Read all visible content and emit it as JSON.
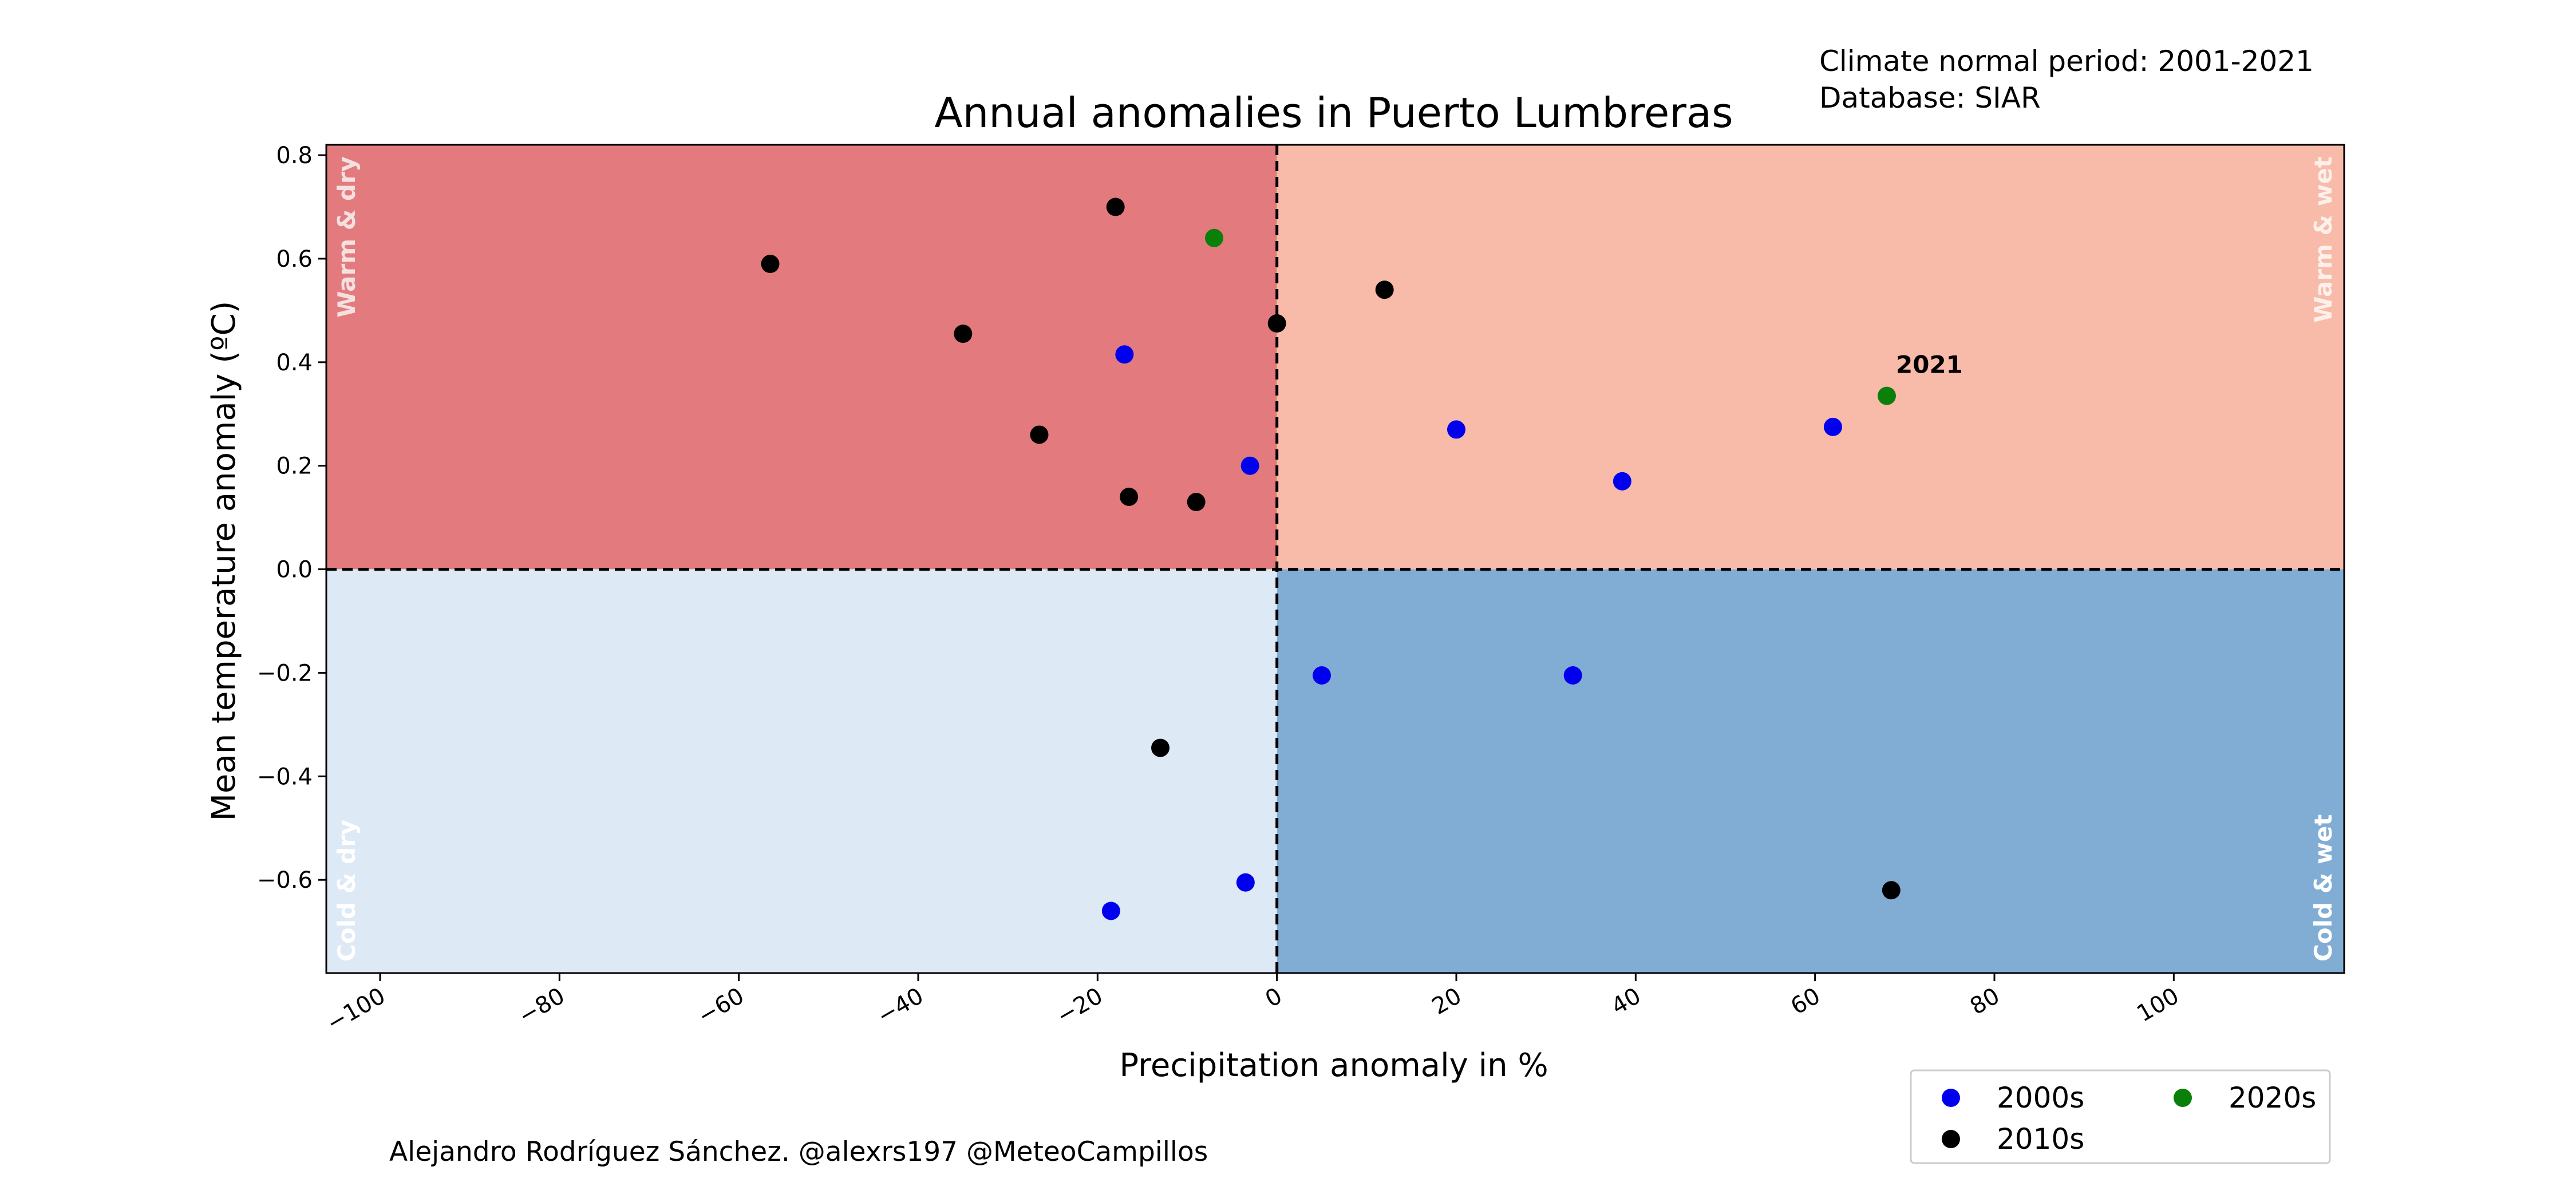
{
  "header": {
    "normal_period": "Climate normal period: 2001-2021",
    "database": "Database: SIAR"
  },
  "footer": {
    "credits": "Alejandro Rodríguez Sánchez. @alexrs197 @MeteoCampillos"
  },
  "chart_data": {
    "type": "scatter",
    "title": "Annual anomalies in Puerto Lumbreras",
    "xlabel": "Precipitation anomaly in %",
    "ylabel": "Mean temperature anomaly (ºC)",
    "xlim": [
      -106,
      119
    ],
    "ylim": [
      -0.78,
      0.82
    ],
    "x_ticks": [
      -100,
      -80,
      -60,
      -40,
      -20,
      0,
      20,
      40,
      60,
      80,
      100
    ],
    "y_ticks": [
      -0.6,
      -0.4,
      -0.2,
      0.0,
      0.2,
      0.4,
      0.6,
      0.8
    ],
    "x_tick_labels": [
      "−100",
      "−80",
      "−60",
      "−40",
      "−20",
      "0",
      "20",
      "40",
      "60",
      "80",
      "100"
    ],
    "y_tick_labels": [
      "−0.6",
      "−0.4",
      "−0.2",
      "0.0",
      "0.2",
      "0.4",
      "0.6",
      "0.8"
    ],
    "grid": false,
    "quadrants": [
      {
        "label": "Warm & dry",
        "color": "#e37b7e",
        "label_color": "#f5e0e0",
        "x": "left",
        "y": "top"
      },
      {
        "label": "Warm & wet",
        "color": "#f8baa9",
        "label_color": "#fdf0ea",
        "x": "right",
        "y": "top"
      },
      {
        "label": "Cold & dry",
        "color": "#dde9f5",
        "label_color": "#ffffff",
        "x": "left",
        "y": "bottom"
      },
      {
        "label": "Cold & wet",
        "color": "#81add4",
        "label_color": "#ffffff",
        "x": "right",
        "y": "bottom"
      }
    ],
    "series": [
      {
        "name": "2000s",
        "color": "#0000ee",
        "points": [
          [
            -17,
            0.415
          ],
          [
            -3,
            0.2
          ],
          [
            20,
            0.27
          ],
          [
            38.5,
            0.17
          ],
          [
            62,
            0.275
          ],
          [
            5,
            -0.205
          ],
          [
            33,
            -0.205
          ],
          [
            -18.5,
            -0.66
          ],
          [
            -3.5,
            -0.605
          ]
        ]
      },
      {
        "name": "2010s",
        "color": "#000000",
        "points": [
          [
            -56.5,
            0.59
          ],
          [
            -18,
            0.7
          ],
          [
            -35,
            0.455
          ],
          [
            0,
            0.475
          ],
          [
            12,
            0.54
          ],
          [
            -26.5,
            0.26
          ],
          [
            -16.5,
            0.14
          ],
          [
            -9,
            0.13
          ],
          [
            -13,
            -0.345
          ],
          [
            68.5,
            -0.62
          ]
        ]
      },
      {
        "name": "2020s",
        "color": "#0a800a",
        "points": [
          [
            -7,
            0.64
          ],
          [
            68,
            0.335
          ]
        ]
      }
    ],
    "annotations": [
      {
        "text": "2021",
        "x": 68,
        "y": 0.335
      }
    ],
    "legend": {
      "placement": "lower-right",
      "columns": 2,
      "order": [
        "2000s",
        "2020s",
        "2010s"
      ]
    }
  }
}
